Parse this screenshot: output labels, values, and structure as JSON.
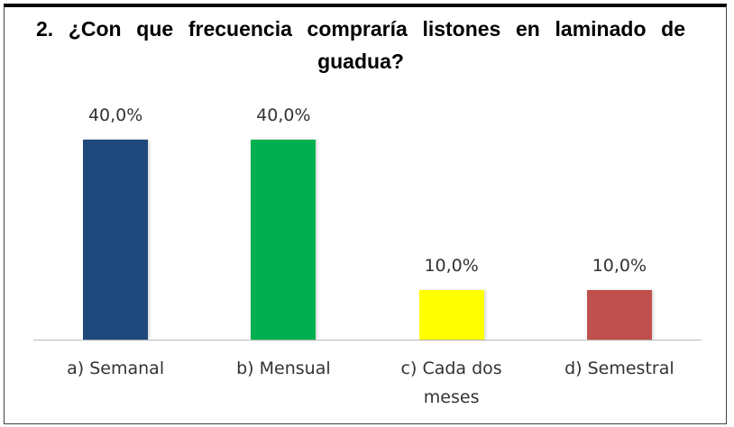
{
  "chart_data": {
    "type": "bar",
    "title": "2. ¿Con que frecuencia compraría listones en laminado de guadua?",
    "categories": [
      "a) Semanal",
      "b) Mensual",
      "c) Cada dos meses",
      "d) Semestral"
    ],
    "values": [
      40,
      40,
      10,
      10
    ],
    "value_labels": [
      "40,0%",
      "40,0%",
      "10,0%",
      "10,0%"
    ],
    "colors": [
      "#1f497d",
      "#00b050",
      "#ffff00",
      "#c0504d"
    ]
  }
}
